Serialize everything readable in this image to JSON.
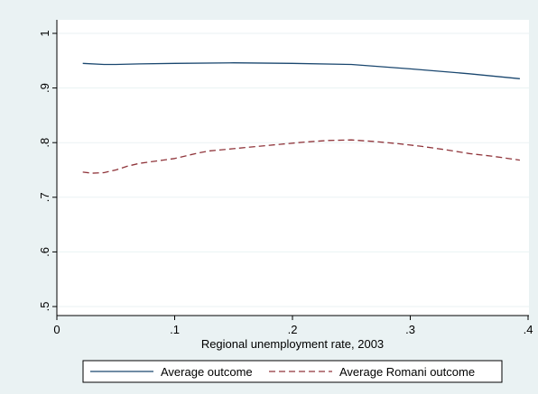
{
  "chart_data": {
    "type": "line",
    "title": "",
    "xlabel": "Regional unemployment rate, 2003",
    "ylabel": "",
    "xlim": [
      0,
      0.4
    ],
    "ylim": [
      0.5,
      1.0
    ],
    "x_ticks": [
      0,
      0.1,
      0.2,
      0.3,
      0.4
    ],
    "x_tick_labels": [
      "0",
      ".1",
      ".2",
      ".3",
      ".4"
    ],
    "y_ticks": [
      0.5,
      0.6,
      0.7,
      0.8,
      0.9,
      1.0
    ],
    "y_tick_labels": [
      ".5",
      ".6",
      ".7",
      ".8",
      ".9",
      "1"
    ],
    "grid": "horizontal",
    "legend_position": "bottom",
    "series": [
      {
        "name": "Average outcome",
        "color": "#1a476f",
        "style": "solid",
        "x": [
          0.022,
          0.04,
          0.05,
          0.07,
          0.1,
          0.15,
          0.2,
          0.25,
          0.3,
          0.35,
          0.393
        ],
        "y": [
          0.945,
          0.943,
          0.943,
          0.944,
          0.945,
          0.946,
          0.945,
          0.943,
          0.935,
          0.926,
          0.917
        ]
      },
      {
        "name": "Average Romani outcome",
        "color": "#90353b",
        "style": "dashed",
        "x": [
          0.022,
          0.03,
          0.04,
          0.05,
          0.06,
          0.07,
          0.08,
          0.09,
          0.1,
          0.11,
          0.12,
          0.13,
          0.14,
          0.15,
          0.17,
          0.19,
          0.21,
          0.23,
          0.25,
          0.27,
          0.29,
          0.31,
          0.33,
          0.35,
          0.37,
          0.393
        ],
        "y": [
          0.746,
          0.744,
          0.745,
          0.75,
          0.757,
          0.762,
          0.765,
          0.768,
          0.771,
          0.776,
          0.781,
          0.785,
          0.787,
          0.789,
          0.793,
          0.797,
          0.801,
          0.804,
          0.805,
          0.802,
          0.798,
          0.793,
          0.787,
          0.78,
          0.775,
          0.768
        ]
      }
    ]
  },
  "colors": {
    "outer_background": "#eaf2f3",
    "plot_background": "#ffffff",
    "grid": "#eaf2f3",
    "axis": "#000000"
  }
}
